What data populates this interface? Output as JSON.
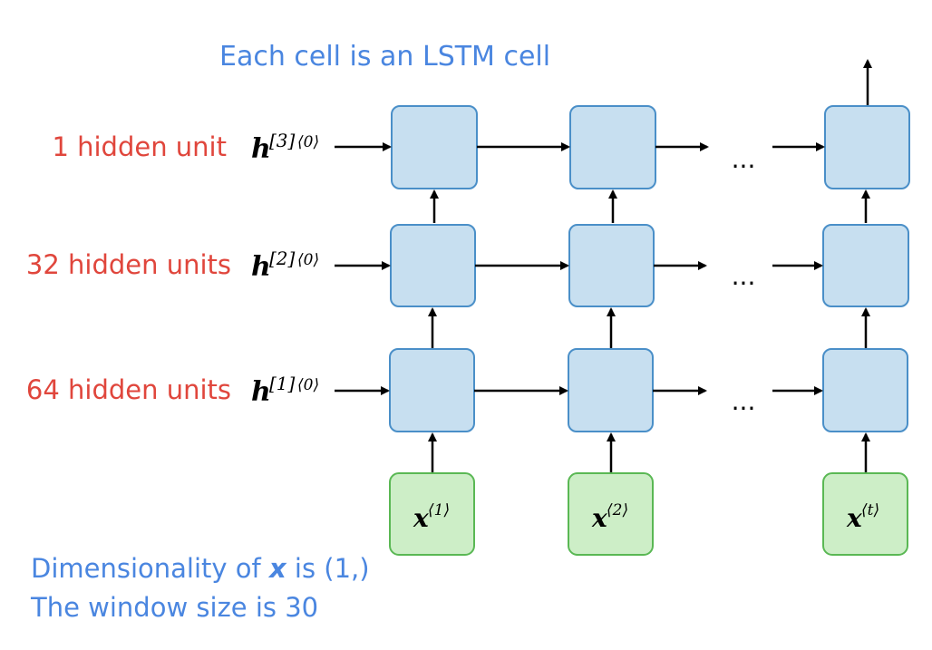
{
  "title": "Each cell is an LSTM cell",
  "layers": [
    {
      "units_label": "1 hidden unit",
      "h_base": "h",
      "h_sup": "[3]",
      "h_time": "⟨0⟩"
    },
    {
      "units_label": "32 hidden units",
      "h_base": "h",
      "h_sup": "[2]",
      "h_time": "⟨0⟩"
    },
    {
      "units_label": "64 hidden units",
      "h_base": "h",
      "h_sup": "[1]",
      "h_time": "⟨0⟩"
    }
  ],
  "inputs": [
    {
      "base": "x",
      "sup": "⟨1⟩"
    },
    {
      "base": "x",
      "sup": "⟨2⟩"
    },
    {
      "base": "x",
      "sup": "⟨t⟩"
    }
  ],
  "ellipsis": "...",
  "notes": {
    "line1_prefix": "Dimensionality of ",
    "line1_var": "x",
    "line1_suffix": " is (1,)",
    "line2": "The window size is 30"
  },
  "colors": {
    "label_blue": "#4a86e0",
    "label_red": "#e0463c",
    "cell_fill": "#c7dff0",
    "cell_stroke": "#4a8fc8",
    "input_fill": "#cdeec7",
    "input_stroke": "#5ab854"
  }
}
